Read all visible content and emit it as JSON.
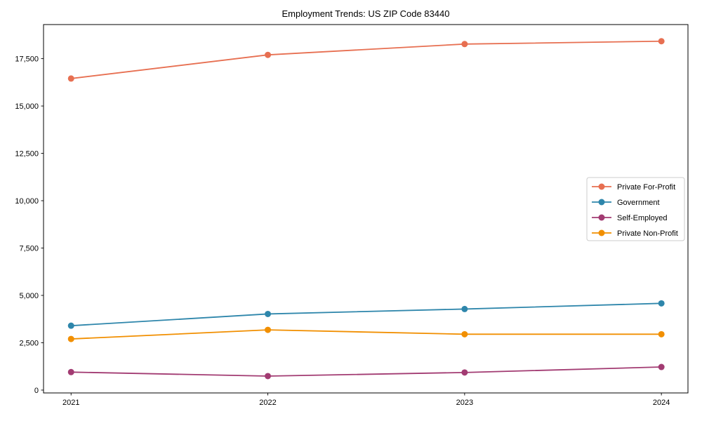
{
  "title": "Employment Trends: US ZIP Code 83440",
  "chart_data": {
    "type": "line",
    "title": "Employment Trends: US ZIP Code 83440",
    "xlabel": "",
    "ylabel": "",
    "x": [
      2021,
      2022,
      2023,
      2024
    ],
    "xtick_labels": [
      "2021",
      "2022",
      "2023",
      "2024"
    ],
    "yticks": [
      0,
      2500,
      5000,
      7500,
      10000,
      12500,
      15000,
      17500
    ],
    "ytick_labels": [
      "0",
      "2,500",
      "5,000",
      "7,500",
      "10,000",
      "12,500",
      "15,000",
      "17,500"
    ],
    "ylim": [
      -150,
      19300
    ],
    "xlim": [
      2020.86,
      2024.135
    ],
    "grid": false,
    "legend_position": "center-right",
    "series": [
      {
        "name": "Private For-Profit",
        "color": "#E76F51",
        "values": [
          16450,
          17700,
          18270,
          18420
        ]
      },
      {
        "name": "Government",
        "color": "#2E86AB",
        "values": [
          3400,
          4020,
          4280,
          4580
        ]
      },
      {
        "name": "Self-Employed",
        "color": "#A23B72",
        "values": [
          950,
          740,
          930,
          1220
        ]
      },
      {
        "name": "Private Non-Profit",
        "color": "#F18F01",
        "values": [
          2700,
          3180,
          2950,
          2950
        ]
      }
    ]
  }
}
